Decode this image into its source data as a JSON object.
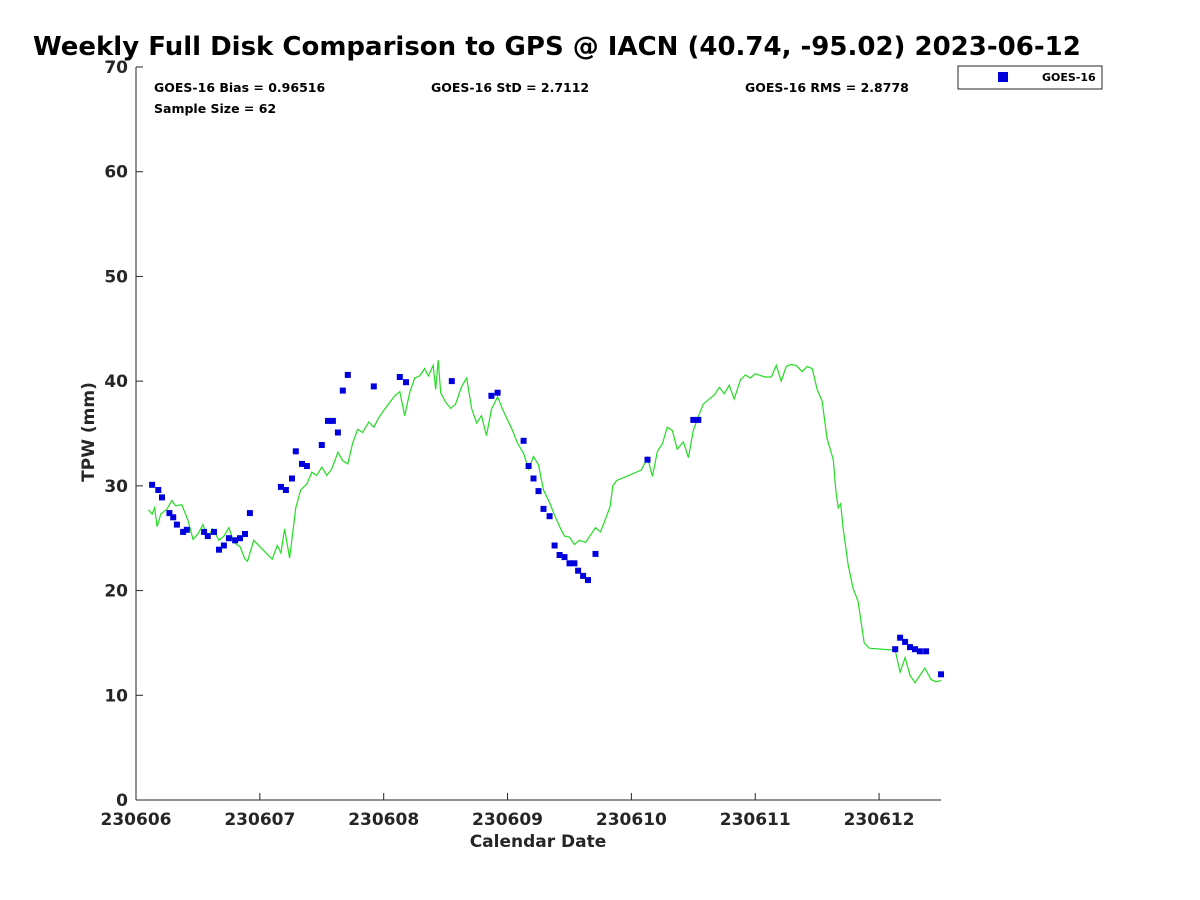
{
  "chart_data": {
    "type": "scatter",
    "title": "Weekly Full Disk Comparison to GPS @ IACN (40.74, -95.02) 2023-06-12",
    "xlabel": "Calendar Date",
    "ylabel": "TPW (mm)",
    "xlim": [
      230606,
      230612.5
    ],
    "ylim": [
      0,
      70
    ],
    "x_ticks": [
      "230606",
      "230607",
      "230608",
      "230609",
      "230610",
      "230611",
      "230612"
    ],
    "y_ticks": [
      "0",
      "10",
      "20",
      "30",
      "40",
      "50",
      "60",
      "70"
    ],
    "grid": false,
    "legend_position": "top-right, outside plot",
    "stats": {
      "bias": "GOES-16 Bias = 0.96516",
      "std": "GOES-16 StD = 2.7112",
      "rms": "GOES-16 RMS = 2.8778",
      "sample": "Sample Size = 62"
    },
    "series": [
      {
        "name": "GOES-16",
        "kind": "scatter",
        "marker": "square",
        "color": "#0000dd",
        "points": [
          [
            230606.13,
            30.1
          ],
          [
            230606.18,
            29.6
          ],
          [
            230606.21,
            28.9
          ],
          [
            230606.27,
            27.4
          ],
          [
            230606.3,
            27.0
          ],
          [
            230606.33,
            26.3
          ],
          [
            230606.38,
            25.6
          ],
          [
            230606.41,
            25.8
          ],
          [
            230606.55,
            25.6
          ],
          [
            230606.58,
            25.2
          ],
          [
            230606.63,
            25.6
          ],
          [
            230606.67,
            23.9
          ],
          [
            230606.71,
            24.3
          ],
          [
            230606.75,
            25.0
          ],
          [
            230606.8,
            24.8
          ],
          [
            230606.84,
            25.0
          ],
          [
            230606.88,
            25.4
          ],
          [
            230606.92,
            27.4
          ],
          [
            230607.17,
            29.9
          ],
          [
            230607.21,
            29.6
          ],
          [
            230607.26,
            30.7
          ],
          [
            230607.29,
            33.3
          ],
          [
            230607.34,
            32.1
          ],
          [
            230607.38,
            31.9
          ],
          [
            230607.5,
            33.9
          ],
          [
            230607.55,
            36.2
          ],
          [
            230607.59,
            36.2
          ],
          [
            230607.63,
            35.1
          ],
          [
            230607.67,
            39.1
          ],
          [
            230607.71,
            40.6
          ],
          [
            230607.92,
            39.5
          ],
          [
            230608.13,
            40.4
          ],
          [
            230608.18,
            39.9
          ],
          [
            230608.55,
            40.0
          ],
          [
            230608.87,
            38.6
          ],
          [
            230608.92,
            38.9
          ],
          [
            230609.13,
            34.3
          ],
          [
            230609.17,
            31.9
          ],
          [
            230609.21,
            30.7
          ],
          [
            230609.25,
            29.5
          ],
          [
            230609.29,
            27.8
          ],
          [
            230609.34,
            27.1
          ],
          [
            230609.38,
            24.3
          ],
          [
            230609.42,
            23.4
          ],
          [
            230609.46,
            23.2
          ],
          [
            230609.5,
            22.6
          ],
          [
            230609.54,
            22.6
          ],
          [
            230609.57,
            21.9
          ],
          [
            230609.61,
            21.4
          ],
          [
            230609.65,
            21.0
          ],
          [
            230609.71,
            23.5
          ],
          [
            230610.13,
            32.5
          ],
          [
            230610.5,
            36.3
          ],
          [
            230610.54,
            36.3
          ],
          [
            230612.13,
            14.4
          ],
          [
            230612.17,
            15.5
          ],
          [
            230612.21,
            15.1
          ],
          [
            230612.25,
            14.6
          ],
          [
            230612.29,
            14.4
          ],
          [
            230612.33,
            14.2
          ],
          [
            230612.38,
            14.2
          ],
          [
            230612.5,
            12.0
          ]
        ]
      },
      {
        "kind": "line",
        "color": "#22dd22",
        "points": [
          [
            230606.1,
            27.7
          ],
          [
            230606.13,
            27.3
          ],
          [
            230606.15,
            27.9
          ],
          [
            230606.17,
            26.1
          ],
          [
            230606.2,
            27.3
          ],
          [
            230606.25,
            27.8
          ],
          [
            230606.29,
            28.6
          ],
          [
            230606.32,
            28.1
          ],
          [
            230606.37,
            28.2
          ],
          [
            230606.42,
            26.7
          ],
          [
            230606.46,
            24.9
          ],
          [
            230606.5,
            25.4
          ],
          [
            230606.54,
            26.3
          ],
          [
            230606.58,
            25.1
          ],
          [
            230606.62,
            25.9
          ],
          [
            230606.67,
            24.8
          ],
          [
            230606.71,
            25.2
          ],
          [
            230606.75,
            26.0
          ],
          [
            230606.79,
            24.6
          ],
          [
            230606.84,
            24.2
          ],
          [
            230606.88,
            23.0
          ],
          [
            230606.9,
            22.8
          ],
          [
            230606.95,
            24.8
          ],
          [
            230607.0,
            24.2
          ],
          [
            230607.05,
            23.6
          ],
          [
            230607.1,
            23.0
          ],
          [
            230607.14,
            24.3
          ],
          [
            230607.17,
            23.6
          ],
          [
            230607.2,
            25.9
          ],
          [
            230607.24,
            23.1
          ],
          [
            230607.29,
            27.9
          ],
          [
            230607.33,
            29.6
          ],
          [
            230607.38,
            30.2
          ],
          [
            230607.42,
            31.3
          ],
          [
            230607.46,
            31.0
          ],
          [
            230607.5,
            31.8
          ],
          [
            230607.54,
            31.0
          ],
          [
            230607.58,
            31.6
          ],
          [
            230607.63,
            33.2
          ],
          [
            230607.67,
            32.4
          ],
          [
            230607.71,
            32.1
          ],
          [
            230607.75,
            34.1
          ],
          [
            230607.79,
            35.4
          ],
          [
            230607.83,
            35.1
          ],
          [
            230607.88,
            36.1
          ],
          [
            230607.92,
            35.6
          ],
          [
            230607.96,
            36.5
          ],
          [
            230608.0,
            37.2
          ],
          [
            230608.05,
            38.0
          ],
          [
            230608.09,
            38.6
          ],
          [
            230608.13,
            39.0
          ],
          [
            230608.17,
            36.7
          ],
          [
            230608.21,
            38.9
          ],
          [
            230608.25,
            40.3
          ],
          [
            230608.29,
            40.5
          ],
          [
            230608.33,
            41.2
          ],
          [
            230608.36,
            40.5
          ],
          [
            230608.4,
            41.5
          ],
          [
            230608.42,
            39.2
          ],
          [
            230608.44,
            42.0
          ],
          [
            230608.46,
            38.9
          ],
          [
            230608.5,
            38.0
          ],
          [
            230608.54,
            37.4
          ],
          [
            230608.58,
            37.8
          ],
          [
            230608.63,
            39.5
          ],
          [
            230608.67,
            40.3
          ],
          [
            230608.71,
            37.4
          ],
          [
            230608.75,
            36.0
          ],
          [
            230608.79,
            36.7
          ],
          [
            230608.83,
            34.8
          ],
          [
            230608.87,
            37.3
          ],
          [
            230608.92,
            38.5
          ],
          [
            230608.96,
            37.3
          ],
          [
            230609.0,
            36.3
          ],
          [
            230609.04,
            35.3
          ],
          [
            230609.08,
            34.1
          ],
          [
            230609.13,
            33.1
          ],
          [
            230609.17,
            31.6
          ],
          [
            230609.21,
            32.8
          ],
          [
            230609.25,
            32.0
          ],
          [
            230609.29,
            29.6
          ],
          [
            230609.34,
            28.4
          ],
          [
            230609.38,
            27.2
          ],
          [
            230609.42,
            26.1
          ],
          [
            230609.46,
            25.2
          ],
          [
            230609.5,
            25.1
          ],
          [
            230609.54,
            24.4
          ],
          [
            230609.58,
            24.8
          ],
          [
            230609.63,
            24.6
          ],
          [
            230609.67,
            25.3
          ],
          [
            230609.71,
            26.0
          ],
          [
            230609.75,
            25.6
          ],
          [
            230609.79,
            26.8
          ],
          [
            230609.83,
            28.1
          ],
          [
            230609.85,
            30.0
          ],
          [
            230609.88,
            30.5
          ],
          [
            230610.08,
            31.5
          ],
          [
            230610.13,
            32.7
          ],
          [
            230610.17,
            30.9
          ],
          [
            230610.21,
            33.3
          ],
          [
            230610.25,
            34.0
          ],
          [
            230610.29,
            35.6
          ],
          [
            230610.33,
            35.3
          ],
          [
            230610.37,
            33.5
          ],
          [
            230610.42,
            34.2
          ],
          [
            230610.46,
            32.7
          ],
          [
            230610.5,
            35.3
          ],
          [
            230610.54,
            36.6
          ],
          [
            230610.58,
            37.8
          ],
          [
            230610.63,
            38.3
          ],
          [
            230610.67,
            38.7
          ],
          [
            230610.71,
            39.4
          ],
          [
            230610.75,
            38.8
          ],
          [
            230610.79,
            39.6
          ],
          [
            230610.83,
            38.3
          ],
          [
            230610.88,
            40.1
          ],
          [
            230610.92,
            40.6
          ],
          [
            230610.96,
            40.3
          ],
          [
            230611.0,
            40.7
          ],
          [
            230611.08,
            40.4
          ],
          [
            230611.13,
            40.4
          ],
          [
            230611.17,
            41.5
          ],
          [
            230611.21,
            40.0
          ],
          [
            230611.25,
            41.4
          ],
          [
            230611.29,
            41.6
          ],
          [
            230611.33,
            41.5
          ],
          [
            230611.38,
            40.9
          ],
          [
            230611.42,
            41.4
          ],
          [
            230611.46,
            41.2
          ],
          [
            230611.5,
            39.2
          ],
          [
            230611.54,
            38.1
          ],
          [
            230611.58,
            34.5
          ],
          [
            230611.63,
            32.5
          ],
          [
            230611.65,
            29.7
          ],
          [
            230611.67,
            27.9
          ],
          [
            230611.69,
            28.3
          ],
          [
            230611.71,
            25.9
          ],
          [
            230611.75,
            22.5
          ],
          [
            230611.79,
            20.2
          ],
          [
            230611.83,
            19.0
          ],
          [
            230611.88,
            15.0
          ],
          [
            230611.92,
            14.5
          ],
          [
            230612.13,
            14.3
          ],
          [
            230612.17,
            12.2
          ],
          [
            230612.21,
            13.6
          ],
          [
            230612.25,
            11.9
          ],
          [
            230612.29,
            11.2
          ],
          [
            230612.33,
            11.9
          ],
          [
            230612.37,
            12.6
          ],
          [
            230612.42,
            11.5
          ],
          [
            230612.46,
            11.3
          ],
          [
            230612.5,
            11.4
          ]
        ]
      }
    ]
  }
}
